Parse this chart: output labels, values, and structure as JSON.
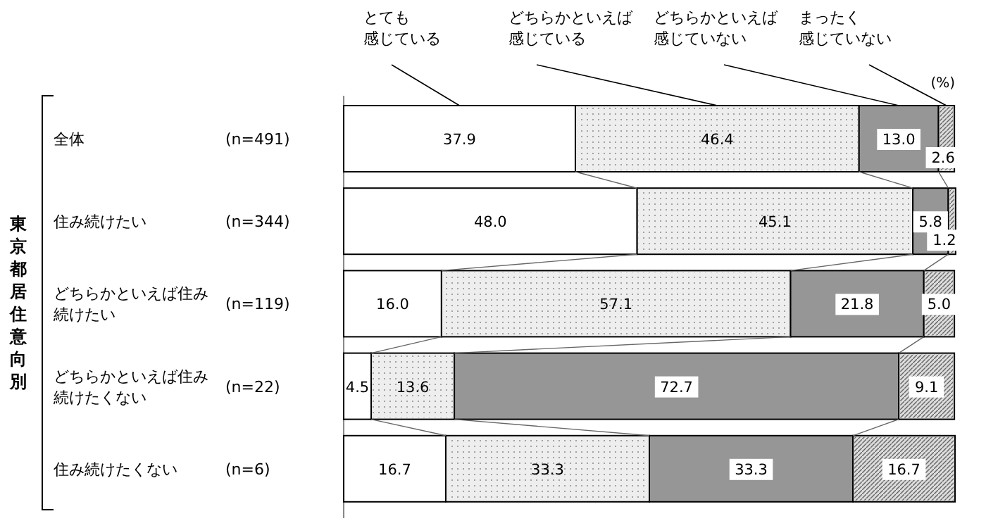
{
  "chart_data": {
    "type": "bar",
    "orientation": "horizontal",
    "stacked": true,
    "ylabel": "東京都居住意向別",
    "categories": [
      "全体",
      "住み続けたい",
      "どちらかといえば住み続けたい",
      "どちらかといえば住み続けたくない",
      "住み続けたくない"
    ],
    "series": [
      {
        "name": "とても感じている",
        "color": "#ffffff",
        "values": [
          37.9,
          48.0,
          16.0,
          4.5,
          16.7
        ],
        "value_labels": [
          "37.9",
          "48.0",
          "16.0",
          "4.5",
          "16.7"
        ]
      },
      {
        "name": "どちらかといえば感じている",
        "color": "#eeeeee",
        "values": [
          46.4,
          45.1,
          57.1,
          13.6,
          33.3
        ],
        "value_labels": [
          "46.4",
          "45.1",
          "57.1",
          "13.6",
          "33.3"
        ]
      },
      {
        "name": "どちらかといえば感じていない",
        "color": "#969696",
        "values": [
          13.0,
          5.8,
          21.8,
          72.7,
          33.3
        ],
        "value_labels": [
          "13.0",
          "5.8",
          "21.8",
          "72.7",
          "33.3"
        ]
      },
      {
        "name": "まったく感じていない",
        "color": "#dcdcdc",
        "values": [
          2.6,
          1.2,
          5.0,
          9.1,
          16.7
        ],
        "value_labels": [
          "2.6",
          "1.2",
          "5.0",
          "9.1",
          "16.7"
        ]
      }
    ],
    "xlim": [
      0,
      100
    ],
    "legend": "top",
    "tick_labels": false,
    "annotations": [
      "(n=491)",
      "(n=344)",
      "(n=119)",
      "(n=22)",
      "(n=6)",
      "(%)"
    ]
  }
}
